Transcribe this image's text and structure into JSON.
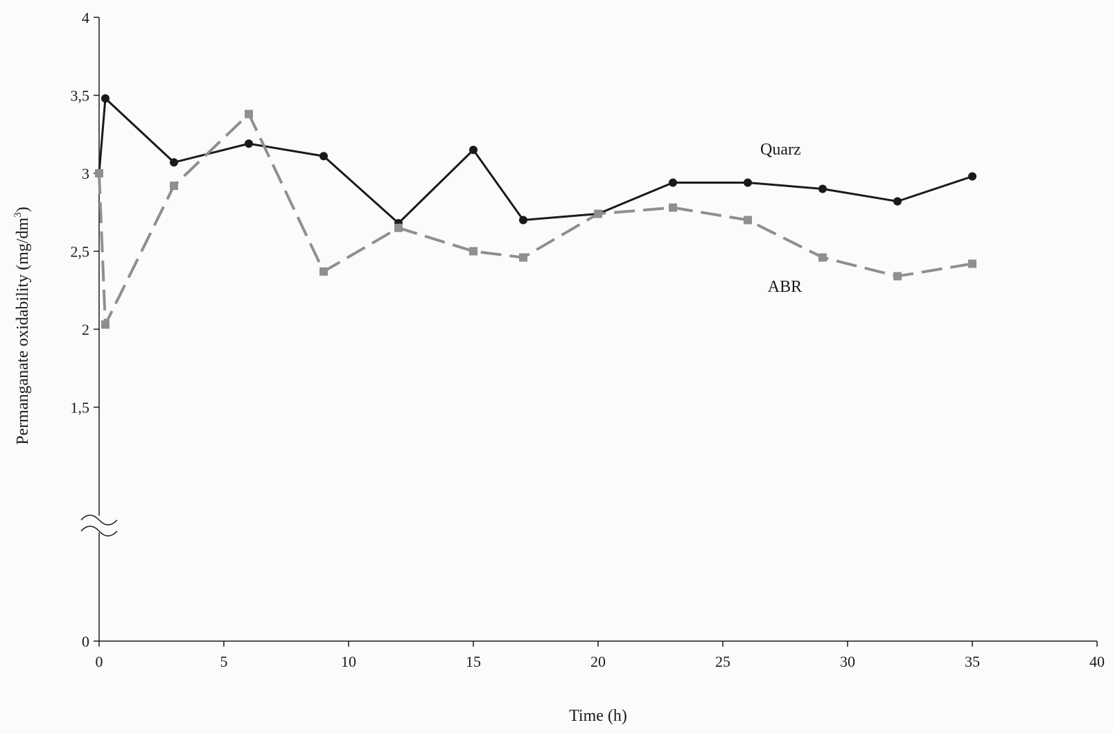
{
  "colors": {
    "background": "#fbfbfb",
    "axis": "#1a1a1a",
    "quarz": "#1a1a1a",
    "abr": "#8f8f8f"
  },
  "chart_data": {
    "type": "line",
    "title": "",
    "xlabel": "Time (h)",
    "ylabel": "Permanganate oxidability (mg/dm",
    "ylabel_sup": "3",
    "ylabel_suffix": ")",
    "xlim": [
      0,
      40
    ],
    "ylim": [
      0,
      4
    ],
    "y_axis_break": true,
    "y_axis_break_between": [
      0,
      1.5
    ],
    "grid": false,
    "xticks": [
      0,
      5,
      10,
      15,
      20,
      25,
      30,
      35,
      40
    ],
    "xtick_labels": [
      "0",
      "5",
      "10",
      "15",
      "20",
      "25",
      "30",
      "35",
      "40"
    ],
    "yticks": [
      0,
      1.5,
      2,
      2.5,
      3,
      3.5,
      4
    ],
    "ytick_labels": [
      "0",
      "1,5",
      "2",
      "2,5",
      "3",
      "3,5",
      "4"
    ],
    "series": [
      {
        "name": "Quarz",
        "line_style": "solid",
        "marker": "circle",
        "color": "#1a1a1a",
        "x": [
          0,
          0.25,
          3,
          6,
          9,
          12,
          15,
          17,
          20,
          23,
          26,
          29,
          32,
          35
        ],
        "y": [
          3.0,
          3.48,
          3.07,
          3.19,
          3.11,
          2.68,
          3.15,
          2.7,
          2.74,
          2.94,
          2.94,
          2.9,
          2.82,
          2.98
        ]
      },
      {
        "name": "ABR",
        "line_style": "dashed",
        "marker": "square",
        "color": "#8f8f8f",
        "x": [
          0,
          0.25,
          3,
          6,
          9,
          12,
          15,
          17,
          20,
          23,
          26,
          29,
          32,
          35
        ],
        "y": [
          3.0,
          2.03,
          2.92,
          3.38,
          2.37,
          2.65,
          2.5,
          2.46,
          2.74,
          2.78,
          2.7,
          2.46,
          2.34,
          2.42
        ]
      }
    ],
    "annotations": [
      {
        "text": "Quarz",
        "series": "Quarz"
      },
      {
        "text": "ABR",
        "series": "ABR"
      }
    ]
  }
}
